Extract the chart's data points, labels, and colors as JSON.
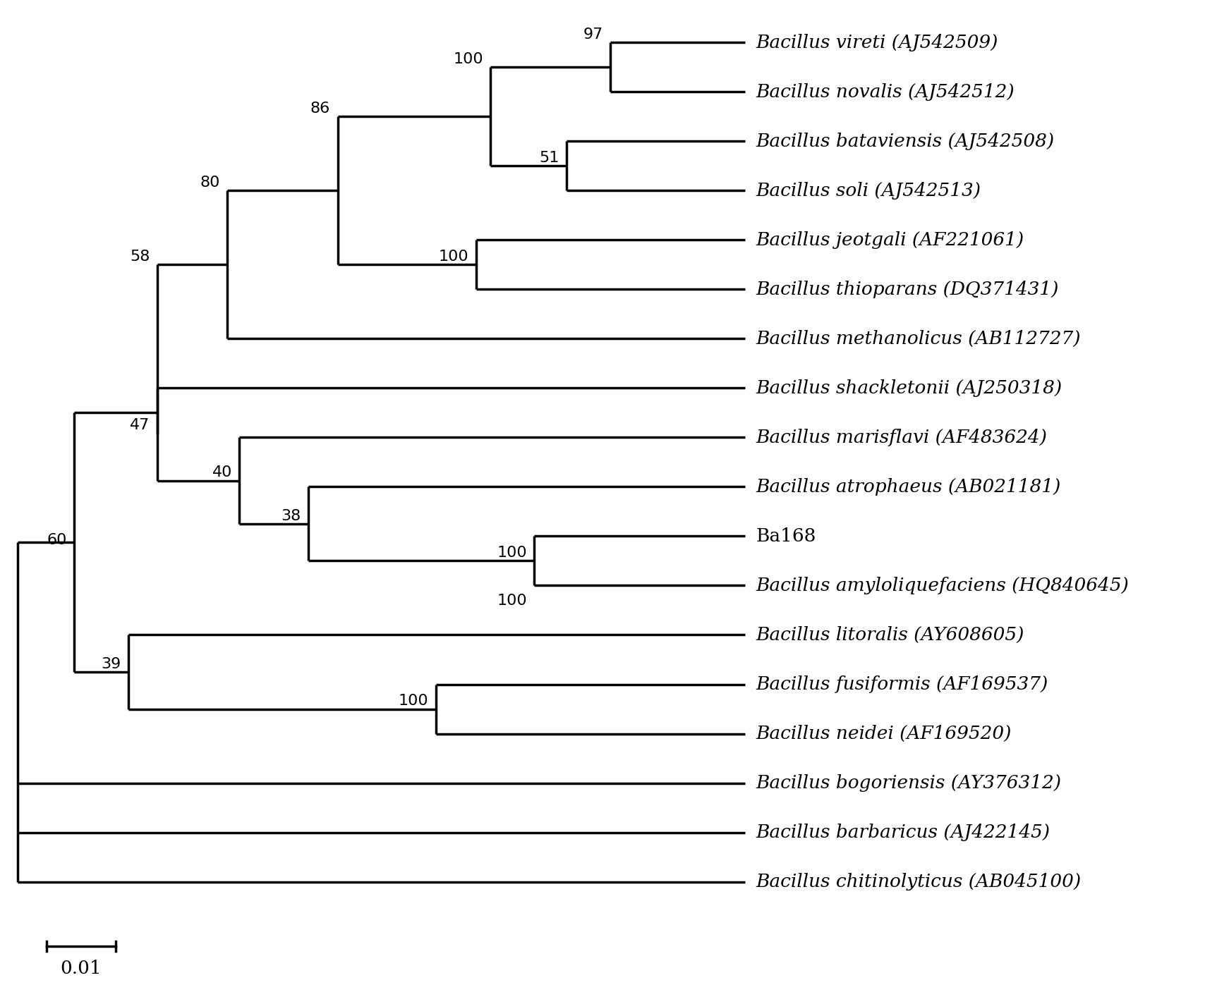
{
  "taxa": [
    {
      "name": "Bacillus vireti (AJ542509)",
      "y": 18
    },
    {
      "name": "Bacillus novalis (AJ542512)",
      "y": 17
    },
    {
      "name": "Bacillus bataviensis (AJ542508)",
      "y": 16
    },
    {
      "name": "Bacillus soli (AJ542513)",
      "y": 15
    },
    {
      "name": "Bacillus jeotgali (AF221061)",
      "y": 14
    },
    {
      "name": "Bacillus thioparans (DQ371431)",
      "y": 13
    },
    {
      "name": "Bacillus methanolicus (AB112727)",
      "y": 12
    },
    {
      "name": "Bacillus shackletonii (AJ250318)",
      "y": 11
    },
    {
      "name": "Bacillus marisflavi (AF483624)",
      "y": 10
    },
    {
      "name": "Bacillus atrophaeus (AB021181)",
      "y": 9
    },
    {
      "name": "Ba168",
      "y": 8
    },
    {
      "name": "Bacillus amyloliquefaciens (HQ840645)",
      "y": 7
    },
    {
      "name": "Bacillus litoralis (AY608605)",
      "y": 6
    },
    {
      "name": "Bacillus fusiformis (AF169537)",
      "y": 5
    },
    {
      "name": "Bacillus neidei (AF169520)",
      "y": 4
    },
    {
      "name": "Bacillus bogoriensis (AY376312)",
      "y": 3
    },
    {
      "name": "Bacillus barbaricus (AJ422145)",
      "y": 2
    },
    {
      "name": "Bacillus chitinolyticus (AB045100)",
      "y": 1
    }
  ],
  "normal_taxa": [
    "Ba168"
  ],
  "font_size_labels": 19,
  "font_size_bootstrap": 16,
  "line_width": 2.5,
  "background_color": "#ffffff",
  "line_color": "#000000",
  "text_color": "#000000",
  "scale_label": "0.01"
}
